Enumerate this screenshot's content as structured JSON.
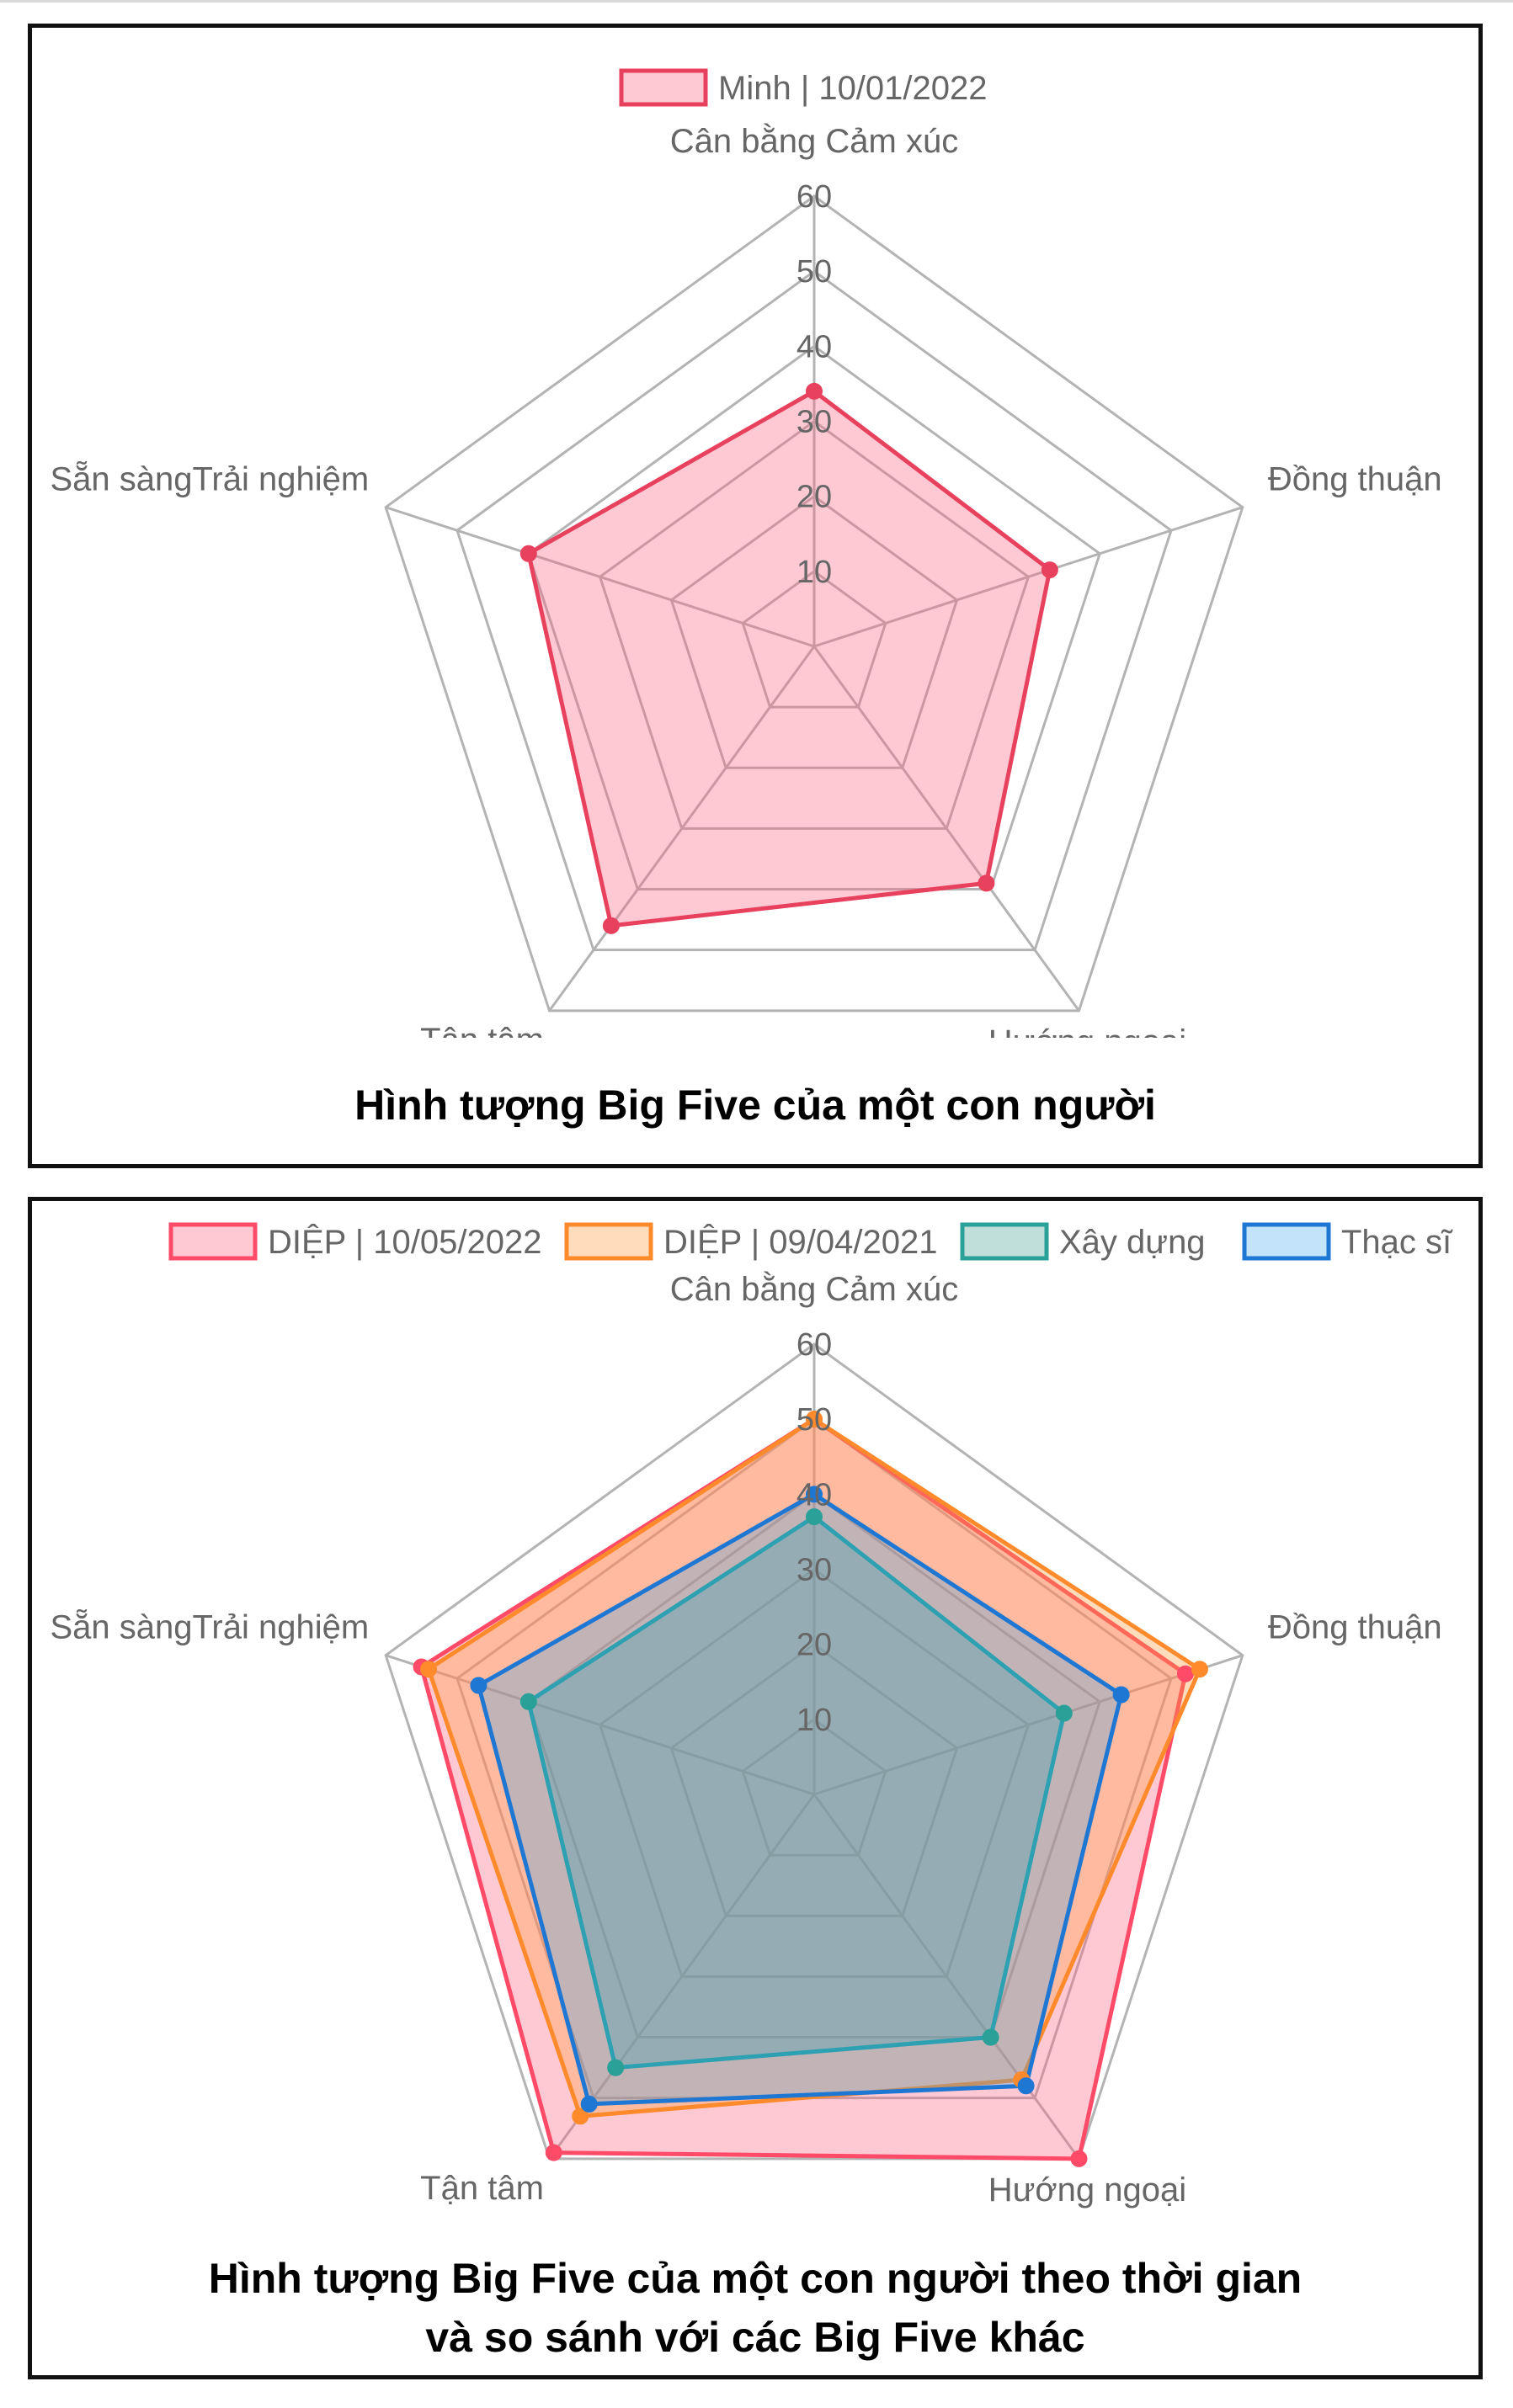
{
  "chart_data": [
    {
      "type": "radar",
      "axes": [
        "Cân bằng Cảm xúc",
        "Đồng thuận",
        "Hướng ngoại",
        "Tận tâm",
        "Sẵn sàngTrải nghiệm"
      ],
      "r_ticks": [
        "10",
        "20",
        "30",
        "40",
        "50",
        "60"
      ],
      "r_range": [
        0,
        60
      ],
      "legend_position": "top",
      "series": [
        {
          "name": "Minh | 10/01/2022",
          "color": "#e8415e",
          "fill": "rgba(255,99,132,0.35)",
          "values": [
            34,
            33,
            39,
            46,
            40
          ]
        }
      ],
      "caption": "Hình tượng Big Five của một con người"
    },
    {
      "type": "radar",
      "axes": [
        "Cân bằng Cảm xúc",
        "Đồng thuận",
        "Hướng ngoại",
        "Tận tâm",
        "Sẵn sàngTrải nghiệm"
      ],
      "r_ticks": [
        "10",
        "20",
        "30",
        "40",
        "50",
        "60"
      ],
      "r_range": [
        0,
        60
      ],
      "legend_position": "top",
      "series": [
        {
          "name": "DIỆP | 10/05/2022",
          "color": "#ff4a68",
          "fill": "rgba(255,99,132,0.35)",
          "values": [
            50,
            52,
            60,
            59,
            55
          ]
        },
        {
          "name": "DIỆP | 09/04/2021",
          "color": "#ff8a2b",
          "fill": "rgba(255,159,64,0.35)",
          "values": [
            50,
            54,
            47,
            53,
            54
          ]
        },
        {
          "name": "Xây dựng",
          "color": "#2aa198",
          "fill": "rgba(75,160,150,0.35)",
          "values": [
            37,
            35,
            40,
            45,
            40
          ]
        },
        {
          "name": "Thạc sĩ",
          "color": "#1f77d4",
          "fill": "rgba(54,162,235,0.30)",
          "values": [
            40,
            43,
            48,
            51,
            47
          ]
        }
      ],
      "caption": [
        "Hình tượng Big Five của một con người theo thời gian",
        "và so sánh với các Big Five khác"
      ]
    }
  ]
}
